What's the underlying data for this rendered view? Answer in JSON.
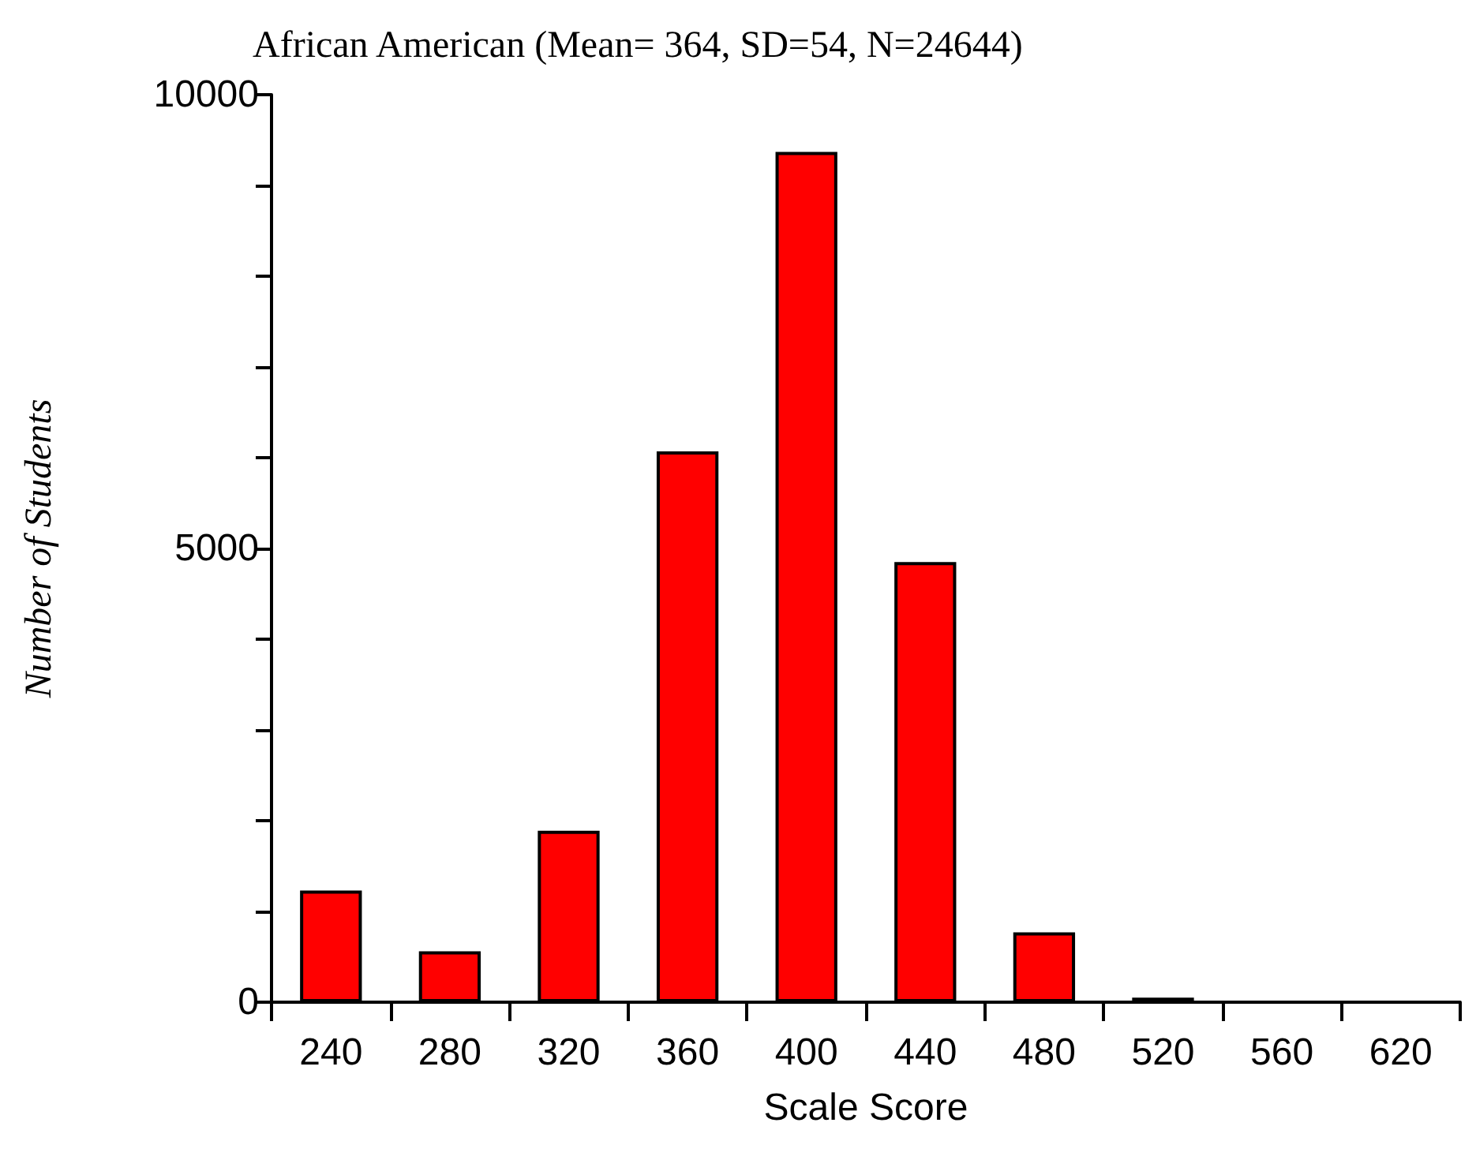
{
  "chart_data": {
    "type": "bar",
    "title": "African American (Mean= 364, SD=54, N=24644)",
    "xlabel": "Scale Score",
    "ylabel": "Number of Students",
    "categories": [
      "240",
      "280",
      "320",
      "360",
      "400",
      "440",
      "480",
      "520",
      "560",
      "620"
    ],
    "values": [
      1230,
      560,
      1890,
      6070,
      9370,
      4850,
      770,
      50,
      null,
      null
    ],
    "color": "#ff0000",
    "ylim": [
      0,
      10000
    ],
    "yticks": [
      0,
      {
        "value": 1000,
        "label": null
      },
      {
        "value": 2000,
        "label": null
      },
      {
        "value": 3000,
        "label": null
      },
      {
        "value": 4000,
        "label": null
      },
      5000,
      {
        "value": 6000,
        "label": null
      },
      {
        "value": 7000,
        "label": null
      },
      {
        "value": 8000,
        "label": null
      },
      {
        "value": 9000,
        "label": null
      },
      10000
    ],
    "grid": false
  }
}
